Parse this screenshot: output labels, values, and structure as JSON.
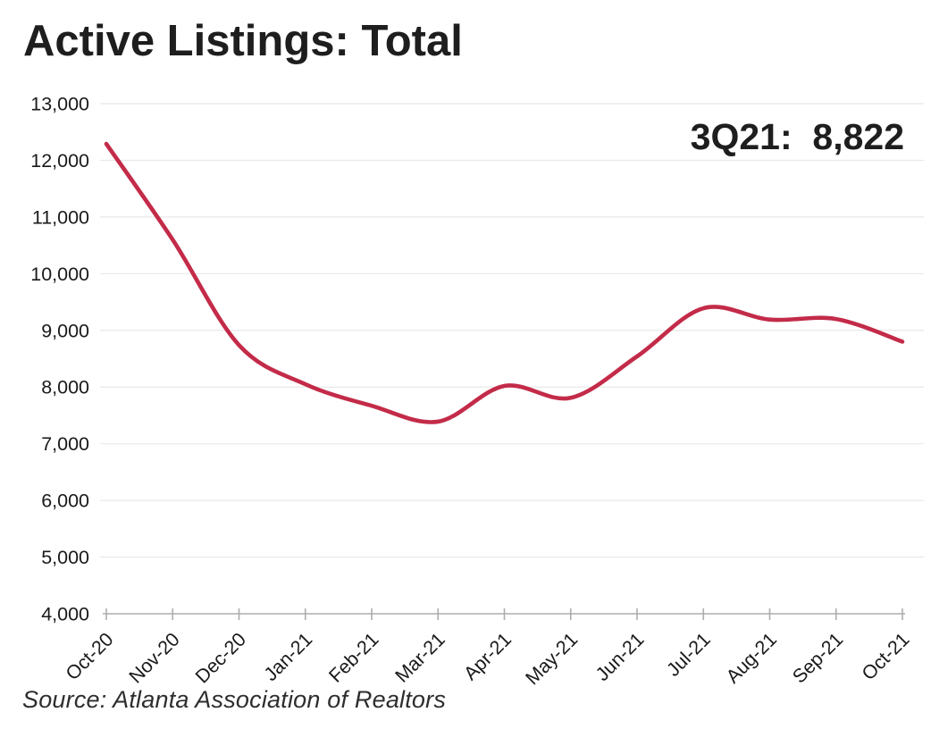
{
  "header": {
    "title": "Active Listings: Total"
  },
  "annotation": {
    "label": "3Q21:  8,822"
  },
  "footer": {
    "source": "Source: Atlanta Association of Realtors"
  },
  "colors": {
    "line": "#c32b49",
    "grid": "#e8e8e8",
    "axis": "#adadad",
    "text": "#1a1a1a"
  },
  "chart_data": {
    "type": "line",
    "title": "Active Listings: Total",
    "x": [
      "Oct-20",
      "Nov-20",
      "Dec-20",
      "Jan-21",
      "Feb-21",
      "Mar-21",
      "Apr-21",
      "May-21",
      "Jun-21",
      "Jul-21",
      "Aug-21",
      "Sep-21",
      "Oct-21"
    ],
    "series": [
      {
        "name": "Total Active Listings",
        "values": [
          12290,
          10600,
          8740,
          8050,
          7670,
          7390,
          8020,
          7810,
          8540,
          9390,
          9190,
          9200,
          8800
        ]
      }
    ],
    "ylim": [
      4000,
      13000
    ],
    "yticks": [
      {
        "value": 13000,
        "label": "13,000"
      },
      {
        "value": 12000,
        "label": "12,000"
      },
      {
        "value": 11000,
        "label": "11,000"
      },
      {
        "value": 10000,
        "label": "10,000"
      },
      {
        "value": 9000,
        "label": "9,000"
      },
      {
        "value": 8000,
        "label": "8,000"
      },
      {
        "value": 7000,
        "label": "7,000"
      },
      {
        "value": 6000,
        "label": "6,000"
      },
      {
        "value": 5000,
        "label": "5,000"
      },
      {
        "value": 4000,
        "label": "4,000"
      }
    ],
    "grid": "horizontal",
    "legend": "none",
    "line_smoothing": true,
    "annotation": "3Q21:  8,822"
  }
}
